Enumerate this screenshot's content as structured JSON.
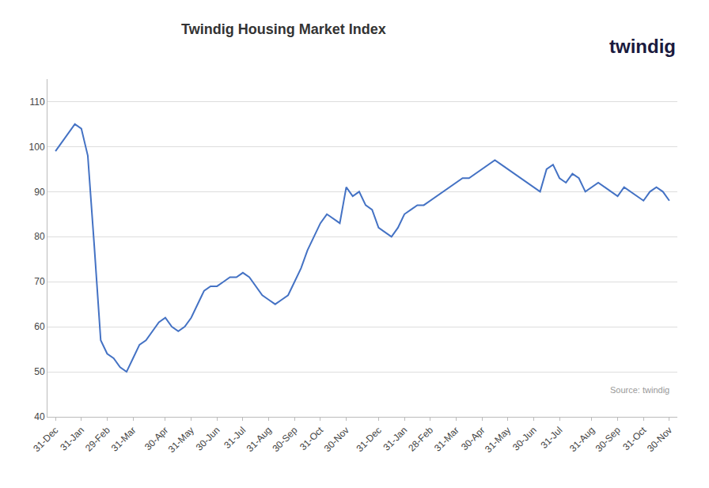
{
  "chart_data": {
    "type": "line",
    "title": "Twindig Housing Market Index",
    "categories": [
      "31-Dec",
      null,
      null,
      null,
      "31-Jan",
      null,
      null,
      null,
      "29-Feb",
      null,
      null,
      null,
      "31-Mar",
      null,
      null,
      null,
      null,
      "30-Apr",
      null,
      null,
      null,
      "31-May",
      null,
      null,
      null,
      "30-Jun",
      null,
      null,
      null,
      "31-Jul",
      null,
      null,
      null,
      "31-Aug",
      null,
      null,
      null,
      "30-Sep",
      null,
      null,
      null,
      "31-Oct",
      null,
      null,
      null,
      "30-Nov",
      null,
      null,
      null,
      null,
      "31-Dec",
      null,
      null,
      null,
      "31-Jan",
      null,
      null,
      null,
      "28-Feb",
      null,
      null,
      null,
      "31-Mar",
      null,
      null,
      null,
      "30-Apr",
      null,
      null,
      null,
      "31-May",
      null,
      null,
      null,
      "30-Jun",
      null,
      null,
      null,
      "31-Jul",
      null,
      null,
      null,
      null,
      "31-Aug",
      null,
      null,
      null,
      "30-Sep",
      null,
      null,
      null,
      "31-Oct",
      null,
      null,
      null,
      "30-Nov"
    ],
    "values": [
      99,
      101,
      103,
      105,
      104,
      98,
      78,
      57,
      54,
      53,
      51,
      50,
      53,
      56,
      57,
      59,
      61,
      62,
      60,
      59,
      60,
      62,
      65,
      68,
      69,
      69,
      70,
      71,
      71,
      72,
      71,
      69,
      67,
      66,
      65,
      66,
      67,
      70,
      73,
      77,
      80,
      83,
      85,
      84,
      83,
      91,
      89,
      90,
      87,
      86,
      82,
      81,
      80,
      82,
      85,
      86,
      87,
      87,
      88,
      89,
      90,
      91,
      92,
      93,
      93,
      94,
      95,
      96,
      97,
      96,
      95,
      94,
      93,
      92,
      91,
      90,
      95,
      96,
      93,
      92,
      94,
      93,
      90,
      91,
      92,
      91,
      90,
      89,
      91,
      90,
      89,
      88,
      90,
      91,
      90,
      88
    ],
    "color": "#4472C4",
    "ylim": [
      40,
      115
    ],
    "yticks": [
      40,
      50,
      60,
      70,
      80,
      90,
      100,
      110
    ],
    "grid": true,
    "annotations": [
      {
        "text": "Source: twindig"
      },
      {
        "text": "twindig",
        "color": "#1a1a3e"
      }
    ]
  }
}
